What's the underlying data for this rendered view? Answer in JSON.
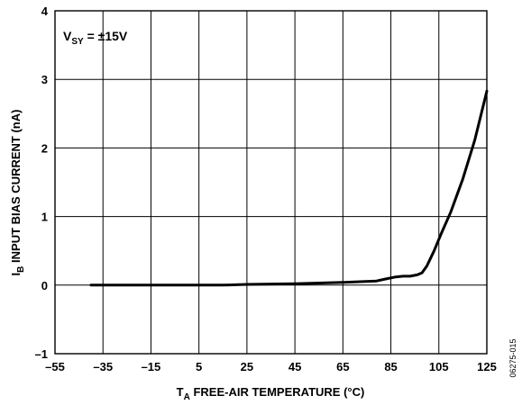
{
  "chart_data": {
    "type": "line",
    "xlabel": {
      "main": "T",
      "sub": "A",
      "rest": " FREE-AIR TEMPERATURE (°C)"
    },
    "ylabel": {
      "main": "I",
      "sub": "B",
      "rest": " INPUT BIAS CURRENT (nA)"
    },
    "xlim": [
      -55,
      125
    ],
    "ylim": [
      -1,
      4
    ],
    "x_ticks": [
      -55,
      -35,
      -15,
      5,
      25,
      45,
      65,
      85,
      105,
      125
    ],
    "x_tick_labels": [
      "–55",
      "–35",
      "–15",
      "5",
      "25",
      "45",
      "65",
      "85",
      "105",
      "125"
    ],
    "y_ticks": [
      -1,
      0,
      1,
      2,
      3,
      4
    ],
    "y_tick_labels": [
      "–1",
      "0",
      "1",
      "2",
      "3",
      "4"
    ],
    "grid": true,
    "annotation": {
      "main": "V",
      "sub": "SY",
      "rest": " = ±15V"
    },
    "figure_id": "06275-015",
    "series": [
      {
        "x": [
          -40,
          -20,
          0,
          15,
          25,
          45,
          65,
          79,
          83,
          87,
          90,
          93,
          96,
          98,
          100,
          103,
          106,
          110,
          115,
          120,
          125
        ],
        "y": [
          0.0,
          0.0,
          0.0,
          0.0,
          0.01,
          0.02,
          0.04,
          0.06,
          0.09,
          0.12,
          0.13,
          0.13,
          0.15,
          0.18,
          0.28,
          0.5,
          0.75,
          1.07,
          1.55,
          2.12,
          2.83
        ]
      }
    ]
  }
}
